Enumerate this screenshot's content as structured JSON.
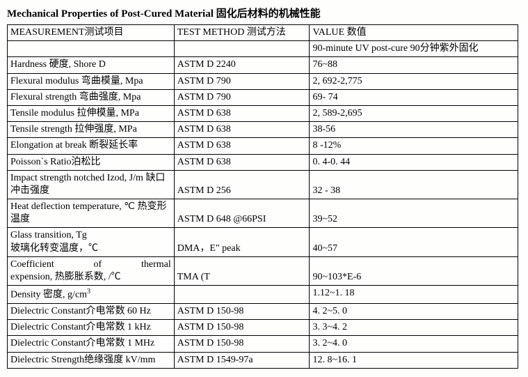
{
  "title": "Mechanical Properties of Post-Cured Material 固化后材料的机械性能",
  "headers": {
    "measurement": "MEASUREMENT测试项目",
    "method": "TEST METHOD 测试方法",
    "value": "VALUE 数值"
  },
  "subheader": {
    "value": "90-minute UV post-cure 90分钟紫外固化"
  },
  "rows": [
    {
      "measurement": "Hardness 硬度, Shore D",
      "method": "ASTM D 2240",
      "value": "76~88"
    },
    {
      "measurement": "Flexural modulus 弯曲模量, Mpa",
      "method": "ASTM D 790",
      "value": "2, 692-2,775"
    },
    {
      "measurement": "Flexural strength 弯曲强度, Mpa",
      "method": "ASTM D 790",
      "value": "69- 74"
    },
    {
      "measurement": "Tensile modulus 拉伸模量, MPa",
      "method": "ASTM D 638",
      "value": "2, 589-2,695"
    },
    {
      "measurement": "Tensile strength 拉伸强度, MPa",
      "method": "ASTM D   638",
      "value": "38-56"
    },
    {
      "measurement": "Elongation at break 断裂延长率",
      "method": "ASTM D 638",
      "value": "8 -12%"
    },
    {
      "measurement": "Poisson`s Ratio泊松比",
      "method": "ASTM D 638",
      "value": "0. 4-0. 44"
    },
    {
      "measurement": "Impact strength notched Izod, J/m 缺口冲击强度",
      "method": "ASTM D 256",
      "value": "32 - 38",
      "multiline": true
    },
    {
      "measurement": " Heat deflection temperature, ℃ 热变形温度",
      "method": "ASTM D 648 @66PSI",
      "value": "39~52",
      "multiline": true
    },
    {
      "measurement": "Glass transition, Tg\n玻璃化转变温度，℃",
      "method": "DMA，E\" peak",
      "value": "40~57",
      "multiline": true
    },
    {
      "measurement_line1": "Coefficient of thermal",
      "measurement_line2": "expension, 热膨胀系数, /℃",
      "method": "TMA (T",
      "value": "90~103*E-6",
      "multiline": true,
      "justified_first": true
    },
    {
      "measurement": "Density 密度, g/cm",
      "measurement_sup": "3",
      "method": "",
      "value": "1.12~1. 18"
    },
    {
      "measurement": "Dielectric Constant介电常数 60 Hz",
      "method": "ASTM D 150-98",
      "value": "4. 2~5. 0",
      "multiline": true
    },
    {
      "measurement": "Dielectric Constant介电常数 1 kHz",
      "method": "ASTM D 150-98",
      "value": "3. 3~4. 2",
      "multiline": true
    },
    {
      "measurement": "Dielectric Constant介电常数 1 MHz",
      "method": "ASTM D 150-98",
      "value": "3. 2~4. 0",
      "multiline": true
    },
    {
      "measurement": "Dielectric Strength绝缘强度 kV/mm",
      "method": "ASTM D 1549-97a",
      "value": "12. 8~16. 1",
      "multiline": true
    }
  ]
}
